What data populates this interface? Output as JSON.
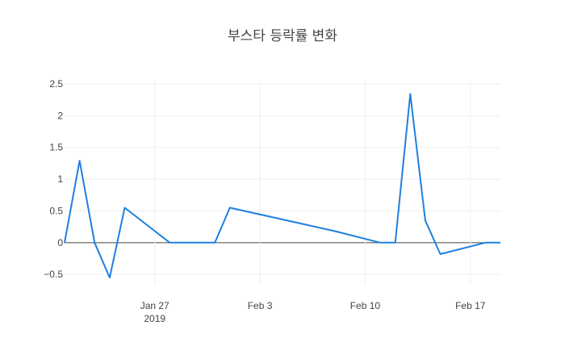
{
  "chart_data": {
    "type": "line",
    "title": "부스타 등락률 변화",
    "xlabel": "",
    "ylabel": "",
    "x_axis": {
      "type": "date",
      "range": [
        "2019-01-21",
        "2019-02-19"
      ],
      "ticks": [
        {
          "value": "2019-01-27",
          "label": "Jan 27",
          "sublabel": "2019"
        },
        {
          "value": "2019-02-03",
          "label": "Feb 3",
          "sublabel": ""
        },
        {
          "value": "2019-02-10",
          "label": "Feb 10",
          "sublabel": ""
        },
        {
          "value": "2019-02-17",
          "label": "Feb 17",
          "sublabel": ""
        }
      ]
    },
    "y_axis": {
      "range": [
        -0.65,
        2.55
      ],
      "ticks": [
        {
          "value": -0.5,
          "label": "−0.5"
        },
        {
          "value": 0,
          "label": "0"
        },
        {
          "value": 0.5,
          "label": "0.5"
        },
        {
          "value": 1,
          "label": "1"
        },
        {
          "value": 1.5,
          "label": "1.5"
        },
        {
          "value": 2,
          "label": "2"
        },
        {
          "value": 2.5,
          "label": "2.5"
        }
      ]
    },
    "grid": true,
    "series": [
      {
        "color": "#1f7fe0",
        "x": [
          "2019-01-21",
          "2019-01-22",
          "2019-01-23",
          "2019-01-24",
          "2019-01-25",
          "2019-01-28",
          "2019-01-31",
          "2019-02-01",
          "2019-02-08",
          "2019-02-11",
          "2019-02-12",
          "2019-02-13",
          "2019-02-14",
          "2019-02-15",
          "2019-02-18",
          "2019-02-19"
        ],
        "y": [
          0,
          1.29,
          0,
          -0.55,
          0.55,
          0,
          0,
          0.55,
          0.18,
          0,
          0,
          2.34,
          0.35,
          -0.18,
          0,
          0
        ]
      }
    ]
  }
}
